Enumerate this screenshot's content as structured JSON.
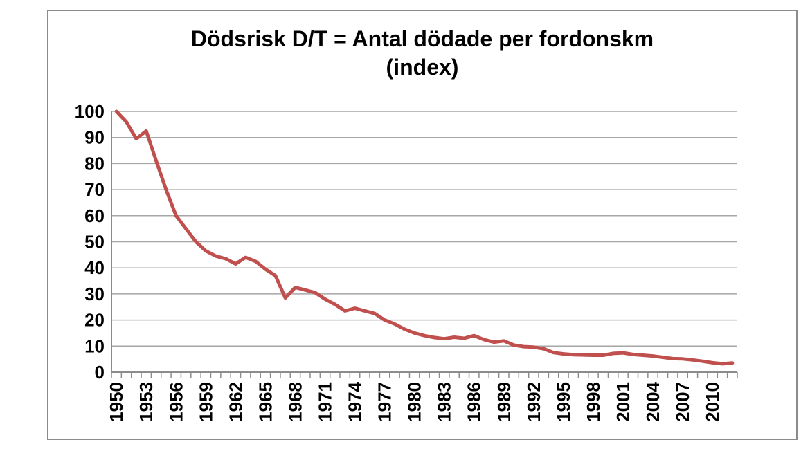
{
  "chart_data": {
    "type": "line",
    "title_line1": "Dödsrisk D/T = Antal dödade per fordonskm",
    "title_line2": "(index)",
    "xlabel": "",
    "ylabel": "",
    "x": [
      1950,
      1951,
      1952,
      1953,
      1954,
      1955,
      1956,
      1957,
      1958,
      1959,
      1960,
      1961,
      1962,
      1963,
      1964,
      1965,
      1966,
      1967,
      1968,
      1969,
      1970,
      1971,
      1972,
      1973,
      1974,
      1975,
      1976,
      1977,
      1978,
      1979,
      1980,
      1981,
      1982,
      1983,
      1984,
      1985,
      1986,
      1987,
      1988,
      1989,
      1990,
      1991,
      1992,
      1993,
      1994,
      1995,
      1996,
      1997,
      1998,
      1999,
      2000,
      2001,
      2002,
      2003,
      2004,
      2005,
      2006,
      2007,
      2008,
      2009,
      2010,
      2011,
      2012
    ],
    "values": [
      100,
      96,
      89.5,
      92.5,
      81,
      70,
      60,
      55,
      50,
      46.5,
      44.5,
      43.5,
      41.5,
      44,
      42.5,
      39.5,
      37,
      28.5,
      32.5,
      31.5,
      30.5,
      28,
      26,
      23.5,
      24.5,
      23.5,
      22.5,
      20,
      18.5,
      16.5,
      15,
      14,
      13.3,
      12.8,
      13.4,
      13,
      14,
      12.5,
      11.5,
      12,
      10.4,
      9.8,
      9.6,
      9,
      7.5,
      7,
      6.7,
      6.6,
      6.5,
      6.5,
      7.2,
      7.4,
      6.8,
      6.5,
      6.2,
      5.7,
      5.2,
      5.1,
      4.7,
      4.2,
      3.6,
      3.2,
      3.5
    ],
    "ylim": [
      0,
      100
    ],
    "yticks": [
      0,
      10,
      20,
      30,
      40,
      50,
      60,
      70,
      80,
      90,
      100
    ],
    "xtick_labels": [
      "1950",
      "1953",
      "1956",
      "1959",
      "1962",
      "1965",
      "1968",
      "1971",
      "1974",
      "1977",
      "1980",
      "1983",
      "1986",
      "1989",
      "1992",
      "1995",
      "1998",
      "2001",
      "2004",
      "2007",
      "2010"
    ],
    "xtick_label_interval": 3,
    "grid": true,
    "legend": "none",
    "line_color": "#C0504D",
    "grid_color": "#A6A6A6",
    "axis_color": "#8C8C8C",
    "title_color": "#000000",
    "tick_label_color": "#000000"
  }
}
